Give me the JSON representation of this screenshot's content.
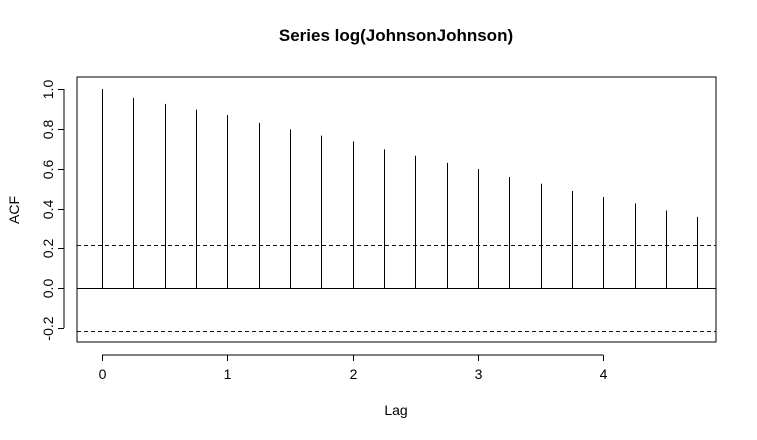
{
  "chart_data": {
    "type": "bar",
    "title": "Series  log(JohnsonJohnson)",
    "xlabel": "Lag",
    "ylabel": "ACF",
    "x": [
      0,
      0.25,
      0.5,
      0.75,
      1,
      1.25,
      1.5,
      1.75,
      2,
      2.25,
      2.5,
      2.75,
      3,
      3.25,
      3.5,
      3.75,
      4,
      4.25,
      4.5,
      4.75
    ],
    "values": [
      1.0,
      0.955,
      0.925,
      0.896,
      0.869,
      0.83,
      0.797,
      0.766,
      0.737,
      0.697,
      0.665,
      0.629,
      0.598,
      0.558,
      0.524,
      0.488,
      0.458,
      0.425,
      0.39,
      0.358
    ],
    "xlim": [
      -0.2,
      4.9
    ],
    "ylim": [
      -0.27,
      1.06
    ],
    "x_ticks": [
      0,
      1,
      2,
      3,
      4
    ],
    "y_ticks": [
      -0.2,
      0.0,
      0.2,
      0.4,
      0.6,
      0.8,
      1.0
    ],
    "x_tick_labels": [
      "0",
      "1",
      "2",
      "3",
      "4"
    ],
    "y_tick_labels": [
      "-0.2",
      "0.0",
      "0.2",
      "0.4",
      "0.6",
      "0.8",
      "1.0"
    ],
    "confidence_bounds": [
      0.215,
      -0.215
    ],
    "zero_line": 0,
    "grid": false,
    "colors": {
      "bars": "#000000",
      "confidence": "#0000cd",
      "axis": "#000000"
    }
  }
}
